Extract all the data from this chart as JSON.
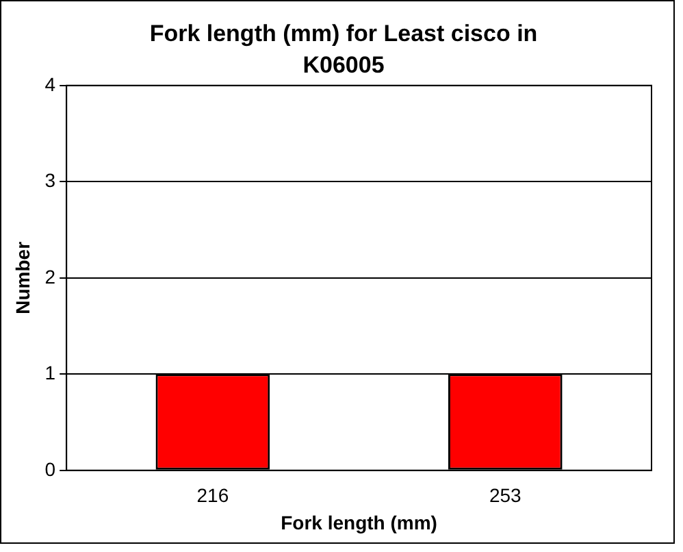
{
  "chart_data": {
    "type": "bar",
    "title": "Fork length (mm) for Least cisco in K06005",
    "xlabel": "Fork length (mm)",
    "ylabel": "Number",
    "categories": [
      "216",
      "253"
    ],
    "values": [
      1,
      1
    ],
    "color": "#ff0000",
    "ylim": [
      0,
      4
    ],
    "yticks": [
      0,
      1,
      2,
      3,
      4
    ],
    "grid": "y",
    "legend": false
  }
}
